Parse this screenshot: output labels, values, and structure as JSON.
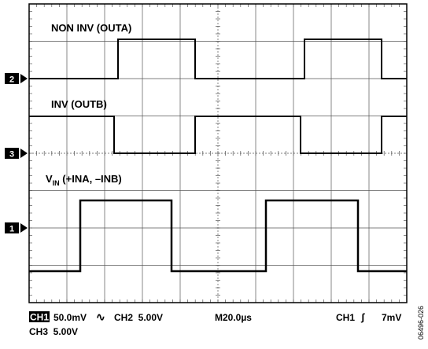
{
  "traces": [
    {
      "marker": "2",
      "label": "NON INV (OUTA)"
    },
    {
      "marker": "3",
      "label": "INV (OUTB)"
    },
    {
      "marker": "1",
      "label": {
        "main": "V",
        "sub": "IN",
        "rest": " (+INA, –INB)"
      }
    }
  ],
  "status": {
    "line1": {
      "ch1": "CH1",
      "ch1_scale": "50.0mV",
      "ch1_coupling": "∿",
      "ch2": "CH2  5.00V",
      "time": "M20.0µs",
      "trigger_source": "CH1",
      "trigger_edge": "ʃ",
      "trigger_level": "7mV"
    },
    "line2": {
      "ch3": "CH3  5.00V"
    }
  },
  "figure_id": "06496-026"
}
